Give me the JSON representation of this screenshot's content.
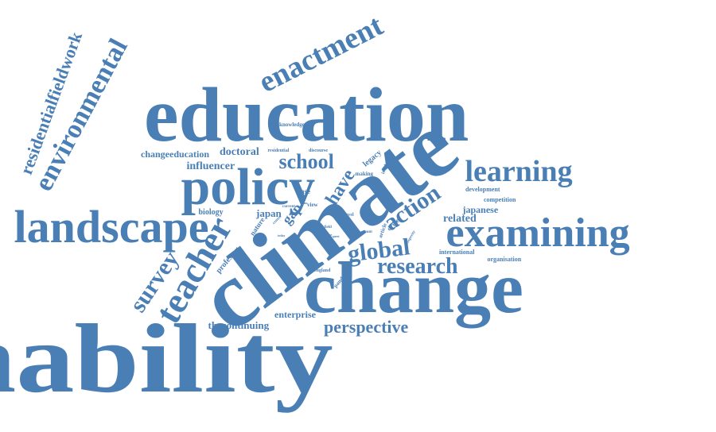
{
  "colors": {
    "text": "#4a7fb5",
    "background": "#ffffff"
  },
  "words": [
    "sustainability",
    "climate",
    "change",
    "education",
    "policy",
    "landscape",
    "examining",
    "learning",
    "enactment",
    "environmental",
    "residentialfieldwork",
    "teacher",
    "survey",
    "global",
    "research",
    "action",
    "perspective",
    "school",
    "influencer",
    "changeeducation",
    "doctoral",
    "thecontinuing",
    "enterprise",
    "japan",
    "related",
    "japanese",
    "have",
    "gap",
    "biology",
    "professor",
    "nature",
    "international",
    "organisation",
    "competition",
    "development",
    "knowledge",
    "residential",
    "discourse",
    "legacy",
    "making",
    "case",
    "view",
    "level",
    "driver",
    "article",
    "pandemic",
    "england",
    "insidence",
    "current",
    "centre",
    "field",
    "count",
    "prosperity",
    "issue",
    "today",
    "quest",
    "team"
  ]
}
